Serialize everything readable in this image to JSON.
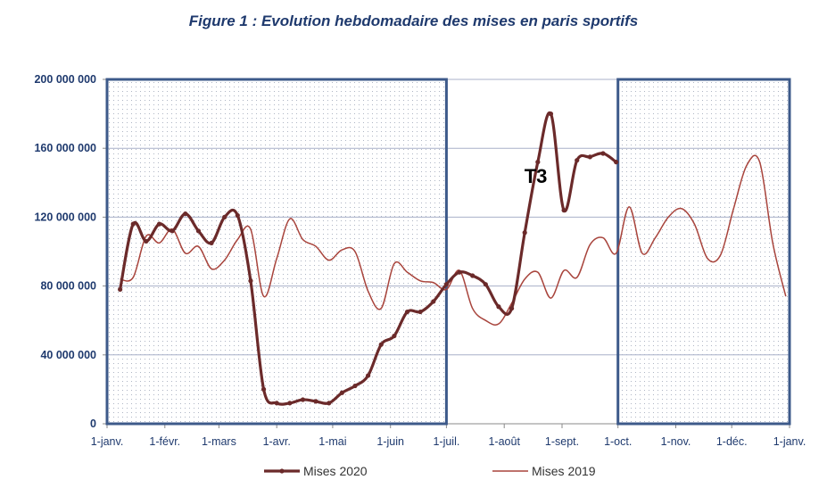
{
  "chart_data": {
    "type": "line",
    "title": "Figure 1 : Evolution hebdomadaire des mises en paris sportifs",
    "xlabel": "",
    "ylabel": "",
    "ylim": [
      0,
      200000000
    ],
    "yticks": [
      0,
      40000000,
      80000000,
      120000000,
      160000000,
      200000000
    ],
    "ytick_labels": [
      "0",
      "40 000 000",
      "80 000 000",
      "120 000 000",
      "160 000 000",
      "200 000 000"
    ],
    "xlim": [
      1,
      366
    ],
    "xticks": [
      1,
      32,
      61,
      92,
      122,
      153,
      183,
      214,
      245,
      275,
      306,
      336,
      367
    ],
    "xtick_labels": [
      "1-janv.",
      "1-févr.",
      "1-mars",
      "1-avr.",
      "1-mai",
      "1-juin",
      "1-juil.",
      "1-août",
      "1-sept.",
      "1-oct.",
      "1-nov.",
      "1-déc.",
      "1-janv."
    ],
    "annotation": "T3",
    "highlighted_periods": [
      [
        1,
        183
      ],
      [
        275,
        367
      ]
    ],
    "series": [
      {
        "name": "Mises 2020",
        "color": "#6b2a2a",
        "x": [
          8,
          15,
          22,
          29,
          36,
          43,
          50,
          57,
          64,
          71,
          78,
          85,
          92,
          99,
          106,
          113,
          120,
          127,
          134,
          141,
          148,
          155,
          162,
          169,
          176,
          183,
          190,
          197,
          204,
          211,
          218,
          225,
          232,
          239,
          246,
          253,
          260,
          267,
          274
        ],
        "values": [
          78000000,
          116000000,
          106000000,
          116000000,
          112000000,
          122000000,
          112000000,
          105000000,
          120000000,
          121000000,
          83000000,
          20000000,
          12000000,
          12000000,
          14000000,
          13000000,
          12000000,
          18000000,
          22000000,
          28000000,
          46000000,
          51000000,
          65000000,
          65000000,
          71000000,
          81000000,
          88000000,
          86000000,
          81000000,
          68000000,
          67000000,
          111000000,
          152000000,
          180000000,
          124000000,
          153000000,
          155000000,
          157000000,
          152000000
        ]
      },
      {
        "name": "Mises 2019",
        "color": "#a8443c",
        "x": [
          8,
          15,
          22,
          29,
          36,
          43,
          50,
          57,
          64,
          71,
          78,
          85,
          92,
          99,
          106,
          113,
          120,
          127,
          134,
          141,
          148,
          155,
          162,
          169,
          176,
          183,
          190,
          197,
          204,
          211,
          218,
          225,
          232,
          239,
          246,
          253,
          260,
          267,
          274,
          281,
          288,
          295,
          302,
          309,
          316,
          323,
          330,
          337,
          344,
          351,
          358,
          365
        ],
        "values": [
          84000000,
          85000000,
          109000000,
          105000000,
          113000000,
          99000000,
          103000000,
          90000000,
          95000000,
          107000000,
          113000000,
          74000000,
          96000000,
          119000000,
          107000000,
          103000000,
          95000000,
          101000000,
          100000000,
          77000000,
          67000000,
          93000000,
          88000000,
          83000000,
          82000000,
          78000000,
          89000000,
          67000000,
          60000000,
          58000000,
          70000000,
          84000000,
          88000000,
          73000000,
          89000000,
          85000000,
          104000000,
          108000000,
          99000000,
          126000000,
          99000000,
          108000000,
          120000000,
          125000000,
          116000000,
          96000000,
          98000000,
          125000000,
          150000000,
          152000000,
          105000000,
          74000000
        ]
      }
    ],
    "legend": [
      "Mises 2020",
      "Mises 2019"
    ]
  }
}
